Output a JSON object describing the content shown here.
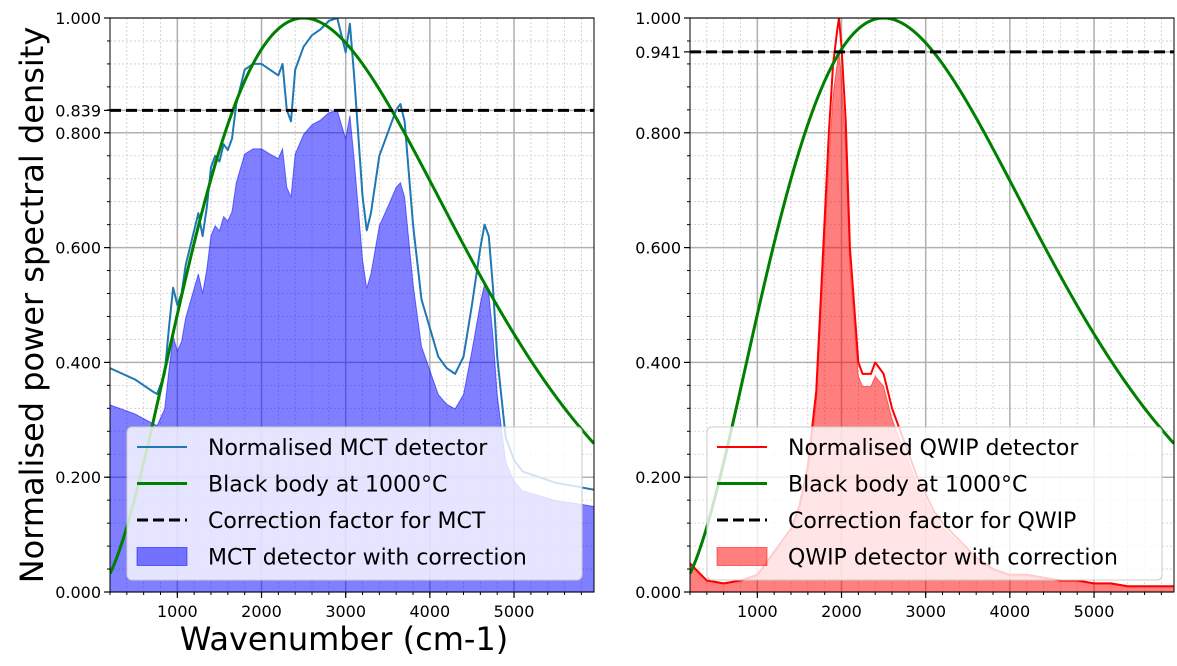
{
  "shared": {
    "ylabel": "Normalised power spectral density",
    "xlabel": "Wavenumber (cm-1)"
  },
  "chart_data": [
    {
      "type": "line",
      "panel": "left",
      "title": "",
      "xlabel": "Wavenumber (cm-1)",
      "ylabel": "Normalised power spectral density",
      "xlim": [
        200,
        5950
      ],
      "ylim": [
        0,
        1
      ],
      "x_ticks": [
        1000,
        2000,
        3000,
        4000,
        5000
      ],
      "y_ticks": [
        0.0,
        0.2,
        0.4,
        0.6,
        0.8,
        0.839,
        1.0
      ],
      "y_tick_labels": [
        "0.000",
        "0.200",
        "0.400",
        "0.600",
        "0.800",
        "0.839",
        "1.000"
      ],
      "grid": true,
      "legend_position": "bottom-right",
      "series": [
        {
          "name": "Normalised MCT detector",
          "kind": "line",
          "color": "#1f77b4",
          "x": [
            200,
            500,
            700,
            760,
            850,
            900,
            950,
            1000,
            1050,
            1100,
            1200,
            1250,
            1300,
            1350,
            1400,
            1450,
            1500,
            1550,
            1600,
            1650,
            1700,
            1800,
            1900,
            2000,
            2100,
            2200,
            2250,
            2300,
            2350,
            2400,
            2500,
            2600,
            2700,
            2800,
            2900,
            2950,
            3000,
            3050,
            3100,
            3200,
            3250,
            3300,
            3400,
            3500,
            3600,
            3650,
            3700,
            3800,
            3900,
            4000,
            4100,
            4200,
            4300,
            4400,
            4500,
            4600,
            4650,
            4700,
            4750,
            4800,
            4900,
            5000,
            5100,
            5300,
            5500,
            5700,
            5950
          ],
          "y": [
            0.39,
            0.37,
            0.35,
            0.345,
            0.38,
            0.46,
            0.53,
            0.5,
            0.52,
            0.57,
            0.63,
            0.66,
            0.62,
            0.67,
            0.74,
            0.76,
            0.75,
            0.78,
            0.77,
            0.79,
            0.85,
            0.91,
            0.92,
            0.92,
            0.91,
            0.9,
            0.92,
            0.84,
            0.82,
            0.91,
            0.95,
            0.97,
            0.98,
            0.995,
            1.0,
            0.97,
            0.94,
            0.99,
            0.9,
            0.69,
            0.63,
            0.66,
            0.76,
            0.8,
            0.84,
            0.85,
            0.82,
            0.64,
            0.51,
            0.46,
            0.41,
            0.39,
            0.38,
            0.41,
            0.5,
            0.6,
            0.64,
            0.62,
            0.53,
            0.41,
            0.27,
            0.23,
            0.21,
            0.2,
            0.19,
            0.185,
            0.178
          ]
        },
        {
          "name": "Black body at 1000°C",
          "kind": "line",
          "color": "#008000",
          "peak_x": 2500,
          "end_value": 0.25
        },
        {
          "name": "Correction factor for MCT",
          "kind": "dashed",
          "color": "#000000",
          "value": 0.839
        },
        {
          "name": "MCT detector with correction",
          "kind": "area",
          "color": "#0000ff",
          "x": [
            200,
            500,
            700,
            760,
            850,
            900,
            950,
            1000,
            1050,
            1100,
            1200,
            1250,
            1300,
            1350,
            1400,
            1450,
            1500,
            1550,
            1600,
            1650,
            1700,
            1800,
            1900,
            2000,
            2100,
            2200,
            2250,
            2300,
            2350,
            2400,
            2500,
            2600,
            2700,
            2800,
            2900,
            2950,
            3000,
            3050,
            3100,
            3200,
            3250,
            3300,
            3400,
            3500,
            3600,
            3650,
            3700,
            3800,
            3900,
            4000,
            4100,
            4200,
            4300,
            4400,
            4500,
            4600,
            4650,
            4700,
            4750,
            4800,
            4900,
            5000,
            5100,
            5300,
            5500,
            5700,
            5950
          ],
          "y": [
            0.326,
            0.31,
            0.294,
            0.29,
            0.319,
            0.386,
            0.445,
            0.42,
            0.436,
            0.478,
            0.529,
            0.554,
            0.52,
            0.562,
            0.621,
            0.638,
            0.629,
            0.654,
            0.646,
            0.663,
            0.713,
            0.763,
            0.772,
            0.772,
            0.763,
            0.755,
            0.772,
            0.705,
            0.688,
            0.763,
            0.797,
            0.814,
            0.822,
            0.835,
            0.839,
            0.814,
            0.789,
            0.83,
            0.755,
            0.579,
            0.529,
            0.554,
            0.638,
            0.671,
            0.705,
            0.713,
            0.688,
            0.537,
            0.428,
            0.386,
            0.344,
            0.327,
            0.319,
            0.344,
            0.42,
            0.503,
            0.537,
            0.52,
            0.445,
            0.344,
            0.227,
            0.193,
            0.176,
            0.168,
            0.159,
            0.155,
            0.149
          ]
        }
      ]
    },
    {
      "type": "line",
      "panel": "right",
      "title": "",
      "xlabel": "",
      "ylabel": "",
      "xlim": [
        200,
        5950
      ],
      "ylim": [
        0,
        1
      ],
      "x_ticks": [
        1000,
        2000,
        3000,
        4000,
        5000
      ],
      "y_ticks": [
        0.0,
        0.2,
        0.4,
        0.6,
        0.8,
        0.941,
        1.0
      ],
      "y_tick_labels": [
        "0.000",
        "0.200",
        "0.400",
        "0.600",
        "0.800",
        "0.941",
        "1.000"
      ],
      "grid": true,
      "legend_position": "bottom-right",
      "series": [
        {
          "name": "Normalised QWIP detector",
          "kind": "line",
          "color": "#ff0000",
          "x": [
            200,
            400,
            600,
            800,
            1000,
            1100,
            1200,
            1300,
            1400,
            1500,
            1600,
            1700,
            1750,
            1800,
            1850,
            1900,
            1950,
            1970,
            2000,
            2050,
            2100,
            2150,
            2200,
            2250,
            2300,
            2350,
            2400,
            2450,
            2500,
            2600,
            2700,
            2800,
            2900,
            3000,
            3100,
            3200,
            3400,
            3600,
            3800,
            4000,
            4200,
            4400,
            4600,
            4800,
            5000,
            5200,
            5400,
            5600,
            5800,
            5950
          ],
          "y": [
            0.05,
            0.02,
            0.015,
            0.02,
            0.03,
            0.05,
            0.07,
            0.09,
            0.11,
            0.15,
            0.22,
            0.35,
            0.5,
            0.65,
            0.8,
            0.92,
            0.98,
            1.0,
            0.95,
            0.82,
            0.6,
            0.5,
            0.4,
            0.38,
            0.38,
            0.38,
            0.4,
            0.39,
            0.38,
            0.32,
            0.28,
            0.24,
            0.2,
            0.17,
            0.14,
            0.12,
            0.09,
            0.06,
            0.04,
            0.03,
            0.03,
            0.025,
            0.02,
            0.02,
            0.015,
            0.015,
            0.01,
            0.01,
            0.01,
            0.01
          ]
        },
        {
          "name": "Black body at 1000°C",
          "kind": "line",
          "color": "#008000",
          "peak_x": 2500,
          "end_value": 0.25
        },
        {
          "name": "Correction factor for QWIP",
          "kind": "dashed",
          "color": "#000000",
          "value": 0.941
        },
        {
          "name": "QWIP detector with correction",
          "kind": "area",
          "color": "#ff0000",
          "x": [
            200,
            400,
            600,
            800,
            1000,
            1100,
            1200,
            1300,
            1400,
            1500,
            1600,
            1700,
            1750,
            1800,
            1850,
            1900,
            1950,
            1970,
            2000,
            2050,
            2100,
            2150,
            2200,
            2250,
            2300,
            2350,
            2400,
            2450,
            2500,
            2600,
            2700,
            2800,
            2900,
            3000,
            3100,
            3200,
            3400,
            3600,
            3800,
            4000,
            4200,
            4400,
            4600,
            4800,
            5000,
            5200,
            5400,
            5600,
            5800,
            5950
          ],
          "y": [
            0.047,
            0.019,
            0.014,
            0.019,
            0.028,
            0.047,
            0.066,
            0.085,
            0.104,
            0.141,
            0.207,
            0.329,
            0.471,
            0.612,
            0.753,
            0.866,
            0.922,
            0.941,
            0.894,
            0.772,
            0.565,
            0.471,
            0.376,
            0.358,
            0.358,
            0.358,
            0.376,
            0.367,
            0.358,
            0.301,
            0.263,
            0.226,
            0.188,
            0.16,
            0.132,
            0.113,
            0.085,
            0.056,
            0.038,
            0.028,
            0.028,
            0.024,
            0.019,
            0.019,
            0.014,
            0.014,
            0.009,
            0.009,
            0.009,
            0.009
          ]
        }
      ]
    }
  ]
}
